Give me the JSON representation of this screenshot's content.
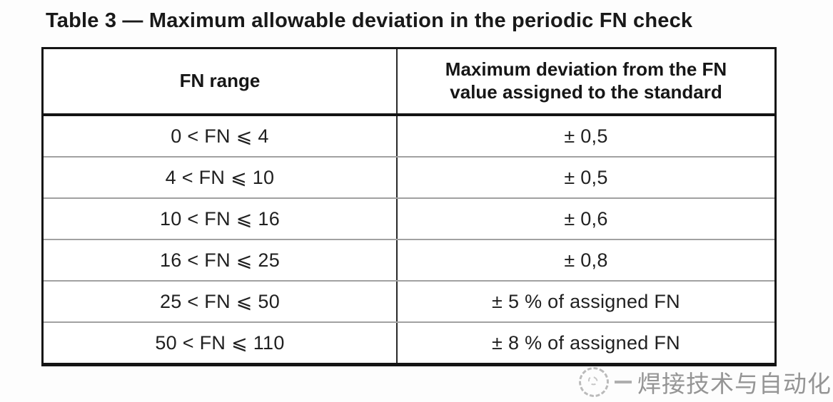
{
  "caption": "Table 3 — Maximum allowable deviation in the periodic FN check",
  "table": {
    "headers": {
      "fn_range": "FN range",
      "max_deviation": "Maximum deviation from the FN value assigned to the standard"
    },
    "rows": [
      {
        "range": "0 < FN ⩽ 4",
        "deviation": "± 0,5"
      },
      {
        "range": "4 < FN ⩽ 10",
        "deviation": "± 0,5"
      },
      {
        "range": "10 < FN ⩽ 16",
        "deviation": "± 0,6"
      },
      {
        "range": "16 < FN ⩽ 25",
        "deviation": "± 0,8"
      },
      {
        "range": "25 < FN ⩽ 50",
        "deviation": "± 5 % of assigned FN"
      },
      {
        "range": "50 < FN ⩽ 110",
        "deviation": "± 8 % of assigned FN"
      }
    ]
  },
  "watermark": {
    "text": "焊接技术与自动化"
  },
  "colors": {
    "background": "#fdfdfd",
    "table_border": "#161616",
    "row_divider": "#a0a0a0",
    "text": "#1c1c1c",
    "watermark_gray": "#8c8c8c"
  }
}
